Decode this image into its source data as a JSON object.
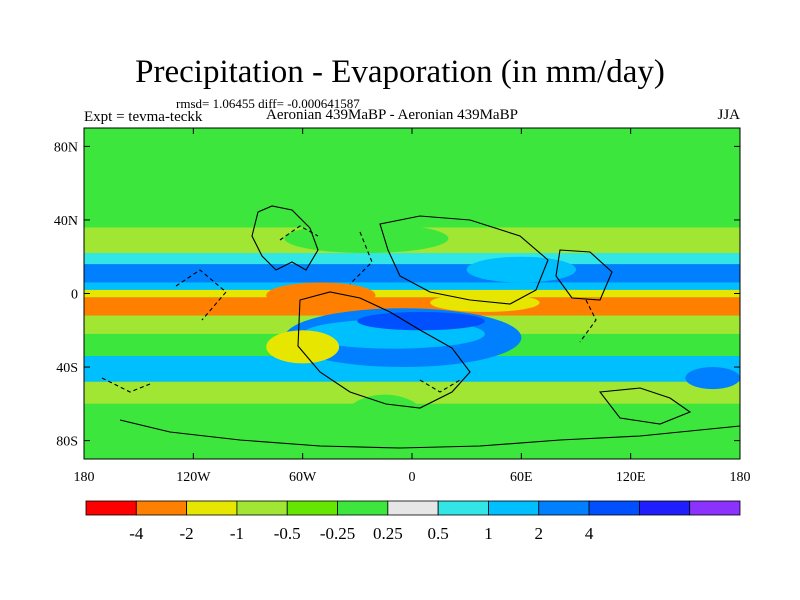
{
  "title": "Precipitation - Evaporation (in mm/day)",
  "stats": "rmsd= 1.06455 diff= -0.000641587",
  "experiment": "Expt = tevma-teckk",
  "comparison": "Aeronian 439MaBP - Aeronian 439MaBP",
  "season": "JJA",
  "chart_data": {
    "type": "heatmap",
    "projection": "cylindrical-equidistant",
    "xlim": [
      -180,
      180
    ],
    "ylim": [
      -90,
      90
    ],
    "x_ticks": [
      {
        "value": -180,
        "label": "180"
      },
      {
        "value": -120,
        "label": "120W"
      },
      {
        "value": -60,
        "label": "60W"
      },
      {
        "value": 0,
        "label": "0"
      },
      {
        "value": 60,
        "label": "60E"
      },
      {
        "value": 120,
        "label": "120E"
      },
      {
        "value": 180,
        "label": "180"
      }
    ],
    "y_ticks": [
      {
        "value": 80,
        "label": "80N"
      },
      {
        "value": 40,
        "label": "40N"
      },
      {
        "value": 0,
        "label": "0"
      },
      {
        "value": -40,
        "label": "40S"
      },
      {
        "value": -80,
        "label": "80S"
      }
    ],
    "colorbar": {
      "colors": [
        "#ff0000",
        "#ff8000",
        "#e6e600",
        "#a0e632",
        "#64e600",
        "#3ce63c",
        "#e6e6e6",
        "#32e6e6",
        "#00bfff",
        "#0080ff",
        "#0050ff",
        "#1e1eff",
        "#8c32ff"
      ],
      "levels": [
        -4,
        -2,
        -1,
        -0.5,
        -0.25,
        0.25,
        0.5,
        1,
        2,
        4
      ],
      "level_labels": [
        "-4",
        "-2",
        "-1",
        "-0.5",
        "-0.25",
        "0.25",
        "0.5",
        "1",
        "2",
        "4"
      ]
    },
    "field_bands": [
      {
        "lat": [
          -12,
          -2
        ],
        "value": -3.0
      },
      {
        "lat": [
          -2,
          2
        ],
        "value": -2.0
      },
      {
        "lat": [
          2,
          6
        ],
        "value": 1.0
      },
      {
        "lat": [
          6,
          16
        ],
        "value": 2.5
      },
      {
        "lat": [
          16,
          22
        ],
        "value": 0.6
      },
      {
        "lat": [
          22,
          36
        ],
        "value": -0.6
      },
      {
        "lat": [
          36,
          52
        ],
        "value": 0.1
      },
      {
        "lat": [
          -22,
          -12
        ],
        "value": -0.7
      },
      {
        "lat": [
          -34,
          -22
        ],
        "value": 0.1
      },
      {
        "lat": [
          -48,
          -34
        ],
        "value": 1.5
      },
      {
        "lat": [
          -60,
          -48
        ],
        "value": -0.7
      },
      {
        "lat": [
          -90,
          -60
        ],
        "value": 0.0
      }
    ],
    "field_anomalies": [
      {
        "lon": [
          -70,
          60
        ],
        "lat": [
          -40,
          -8
        ],
        "value": 2.5
      },
      {
        "lon": [
          -60,
          40
        ],
        "lat": [
          -30,
          -14
        ],
        "value": 1.5
      },
      {
        "lon": [
          -30,
          40
        ],
        "lat": [
          -20,
          -10
        ],
        "value": 5.0
      },
      {
        "lon": [
          30,
          90
        ],
        "lat": [
          6,
          20
        ],
        "value": 1.5
      },
      {
        "lon": [
          -80,
          -20
        ],
        "lat": [
          -8,
          6
        ],
        "value": -3.0
      },
      {
        "lon": [
          -80,
          -40
        ],
        "lat": [
          -38,
          -20
        ],
        "value": -1.5
      },
      {
        "lon": [
          10,
          70
        ],
        "lat": [
          -10,
          0
        ],
        "value": -1.5
      },
      {
        "lon": [
          150,
          180
        ],
        "lat": [
          -52,
          -40
        ],
        "value": 2.5
      },
      {
        "lon": [
          -70,
          20
        ],
        "lat": [
          22,
          38
        ],
        "value": 0.0
      },
      {
        "lon": [
          -40,
          10
        ],
        "lat": [
          -90,
          -55
        ],
        "value": 0.0
      }
    ]
  }
}
